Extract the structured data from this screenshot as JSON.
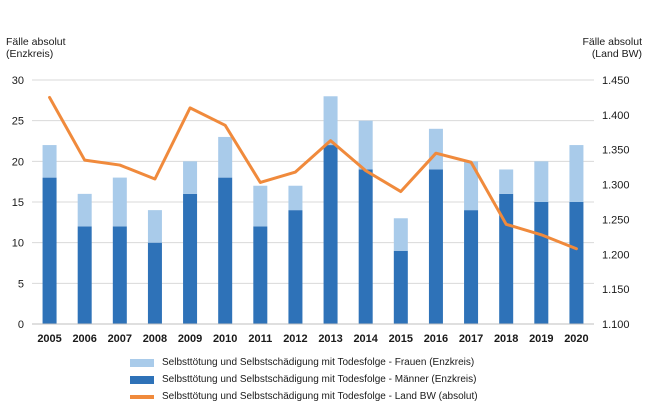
{
  "chart_data": {
    "type": "bar",
    "categories": [
      "2005",
      "2006",
      "2007",
      "2008",
      "2009",
      "2010",
      "2011",
      "2012",
      "2013",
      "2014",
      "2015",
      "2016",
      "2017",
      "2018",
      "2019",
      "2020"
    ],
    "series": [
      {
        "name": "Selbsttötung und Selbstschädigung mit Todesfolge - Männer (Enzkreis)",
        "kind": "bar",
        "axis": "left",
        "color": "#2e72b8",
        "values": [
          18,
          12,
          12,
          10,
          16,
          18,
          12,
          14,
          22,
          19,
          9,
          19,
          14,
          16,
          15,
          15
        ]
      },
      {
        "name": "Selbsttötung und Selbstschädigung mit Todesfolge - Frauen (Enzkreis)",
        "kind": "bar",
        "axis": "left",
        "color": "#a9cbea",
        "values": [
          4,
          4,
          6,
          4,
          4,
          5,
          5,
          3,
          6,
          6,
          4,
          5,
          6,
          3,
          5,
          7
        ]
      },
      {
        "name": "Selbsttötung und Selbstschädigung mit Todesfolge - Land BW (absolut)",
        "kind": "line",
        "axis": "right",
        "color": "#f08a3c",
        "values": [
          1425,
          1335,
          1328,
          1308,
          1410,
          1385,
          1303,
          1318,
          1363,
          1320,
          1290,
          1345,
          1332,
          1243,
          1228,
          1208
        ]
      }
    ],
    "stacked": true,
    "ylabel_left": [
      "Fälle absolut",
      "(Enzkreis)"
    ],
    "ylabel_right": [
      "Fälle absolut",
      "(Land BW)"
    ],
    "ylim_left": [
      0,
      30
    ],
    "yticks_left": [
      "0",
      "5",
      "10",
      "15",
      "20",
      "25",
      "30"
    ],
    "ylim_right": [
      1100,
      1450
    ],
    "yticks_right": [
      "1.100",
      "1.150",
      "1.200",
      "1.250",
      "1.300",
      "1.350",
      "1.400",
      "1.450"
    ],
    "grid": true,
    "legend_position": "bottom"
  }
}
